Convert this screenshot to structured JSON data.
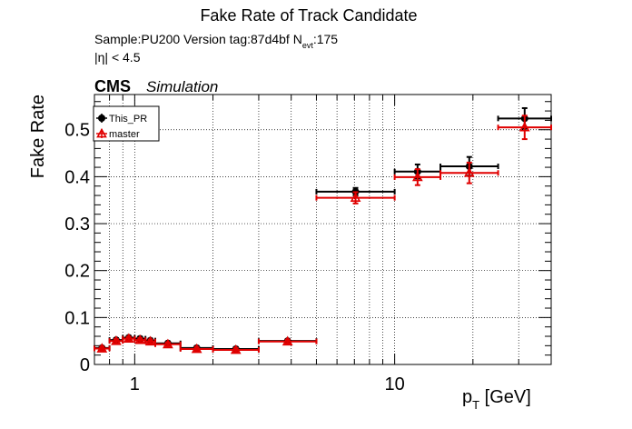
{
  "header": {
    "title": "Fake Rate of Track Candidate",
    "sample_line": "Sample:PU200   Version tag:87d4bf  N",
    "nevt_sub": "evt",
    "nevt_value": ":175",
    "eta_cut": "|η| < 4.5",
    "cms": "CMS",
    "simulation": "Simulation"
  },
  "chart_data": {
    "type": "scatter",
    "title": "Fake Rate of Track Candidate",
    "ylabel": "Fake Rate",
    "xlabel_main": "p",
    "xlabel_sub": "T",
    "xlabel_unit": " [GeV]",
    "xscale": "log",
    "xlim": [
      0.7,
      40
    ],
    "ylim": [
      0,
      0.575
    ],
    "grid": true,
    "legend_position": "top-left",
    "x_ticks": [
      {
        "value": 1,
        "label": "1"
      },
      {
        "value": 10,
        "label": "10"
      }
    ],
    "y_ticks": [
      {
        "value": 0,
        "label": "0"
      },
      {
        "value": 0.1,
        "label": "0.1"
      },
      {
        "value": 0.2,
        "label": "0.2"
      },
      {
        "value": 0.3,
        "label": "0.3"
      },
      {
        "value": 0.4,
        "label": "0.4"
      },
      {
        "value": 0.5,
        "label": "0.5"
      }
    ],
    "series": [
      {
        "name": "This_PR",
        "color": "#000000",
        "marker": "circle",
        "points": [
          {
            "xlo": 0.7,
            "xhi": 0.8,
            "y": 0.035,
            "err": 0.004
          },
          {
            "xlo": 0.8,
            "xhi": 0.9,
            "y": 0.052,
            "err": 0.004
          },
          {
            "xlo": 0.9,
            "xhi": 1.0,
            "y": 0.057,
            "err": 0.004
          },
          {
            "xlo": 1.0,
            "xhi": 1.1,
            "y": 0.055,
            "err": 0.004
          },
          {
            "xlo": 1.1,
            "xhi": 1.2,
            "y": 0.051,
            "err": 0.004
          },
          {
            "xlo": 1.2,
            "xhi": 1.5,
            "y": 0.045,
            "err": 0.004
          },
          {
            "xlo": 1.5,
            "xhi": 2.0,
            "y": 0.035,
            "err": 0.004
          },
          {
            "xlo": 2.0,
            "xhi": 3.0,
            "y": 0.033,
            "err": 0.004
          },
          {
            "xlo": 3.0,
            "xhi": 5.0,
            "y": 0.05,
            "err": 0.004
          },
          {
            "xlo": 5.0,
            "xhi": 10.0,
            "y": 0.368,
            "err": 0.008
          },
          {
            "xlo": 10.0,
            "xhi": 15.0,
            "y": 0.411,
            "err": 0.015
          },
          {
            "xlo": 15.0,
            "xhi": 25.0,
            "y": 0.422,
            "err": 0.02
          },
          {
            "xlo": 25.0,
            "xhi": 40.0,
            "y": 0.524,
            "err": 0.022
          }
        ]
      },
      {
        "name": "master",
        "color": "#e00000",
        "marker": "triangle",
        "points": [
          {
            "xlo": 0.7,
            "xhi": 0.8,
            "y": 0.034,
            "err": 0.004
          },
          {
            "xlo": 0.8,
            "xhi": 0.9,
            "y": 0.05,
            "err": 0.004
          },
          {
            "xlo": 0.9,
            "xhi": 1.0,
            "y": 0.055,
            "err": 0.004
          },
          {
            "xlo": 1.0,
            "xhi": 1.1,
            "y": 0.052,
            "err": 0.004
          },
          {
            "xlo": 1.1,
            "xhi": 1.2,
            "y": 0.049,
            "err": 0.004
          },
          {
            "xlo": 1.2,
            "xhi": 1.5,
            "y": 0.043,
            "err": 0.004
          },
          {
            "xlo": 1.5,
            "xhi": 2.0,
            "y": 0.033,
            "err": 0.004
          },
          {
            "xlo": 2.0,
            "xhi": 3.0,
            "y": 0.031,
            "err": 0.004
          },
          {
            "xlo": 3.0,
            "xhi": 5.0,
            "y": 0.049,
            "err": 0.004
          },
          {
            "xlo": 5.0,
            "xhi": 10.0,
            "y": 0.355,
            "err": 0.012
          },
          {
            "xlo": 10.0,
            "xhi": 15.0,
            "y": 0.399,
            "err": 0.017
          },
          {
            "xlo": 15.0,
            "xhi": 25.0,
            "y": 0.408,
            "err": 0.022
          },
          {
            "xlo": 25.0,
            "xhi": 40.0,
            "y": 0.505,
            "err": 0.025
          }
        ]
      }
    ]
  }
}
